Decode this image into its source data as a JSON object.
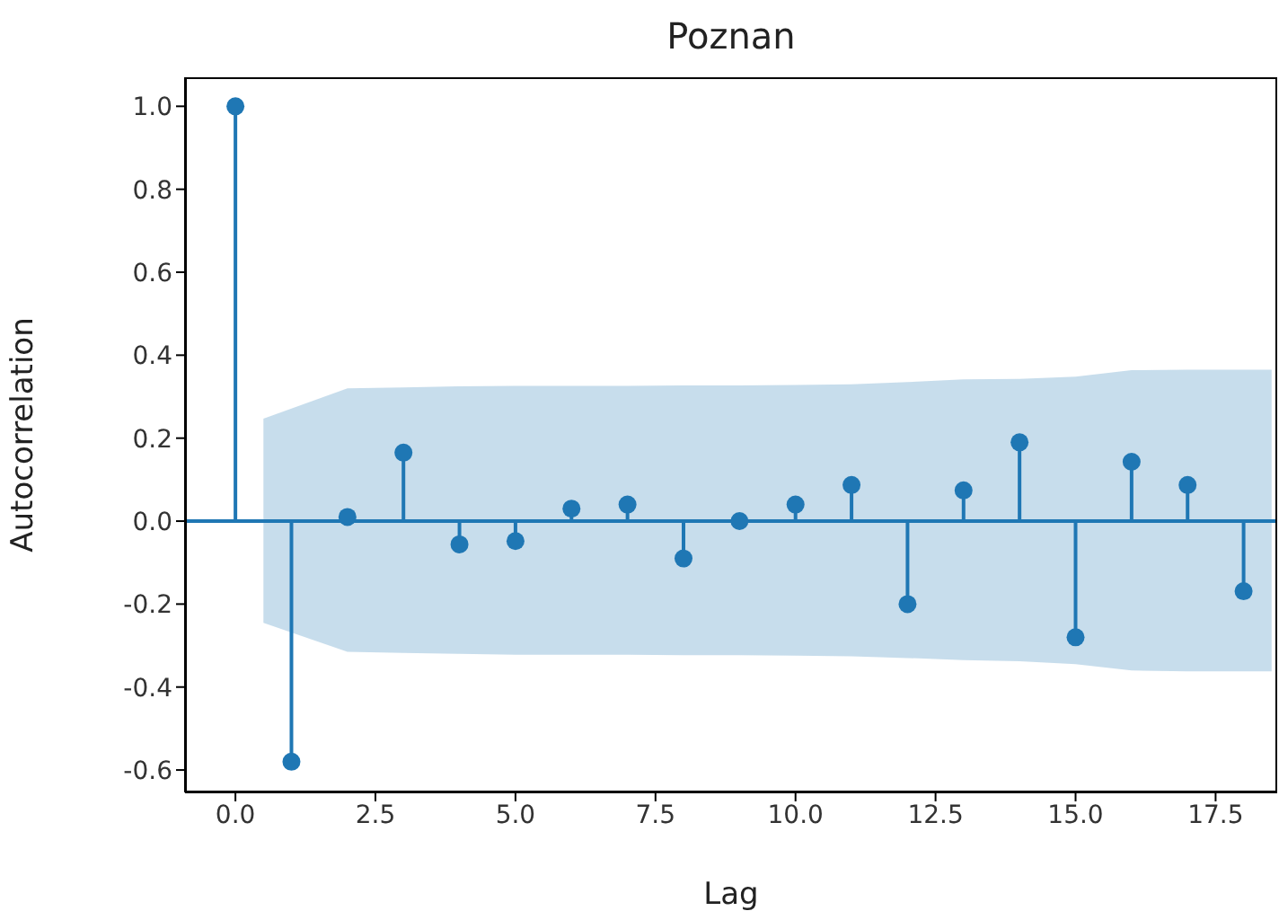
{
  "chart_data": {
    "type": "lollipop",
    "title": "Poznan",
    "xlabel": "Lag",
    "ylabel": "Autocorrelation",
    "xlim": [
      -0.9,
      18.6
    ],
    "ylim": [
      -0.654,
      1.07
    ],
    "xticks": [
      {
        "value": 0,
        "label": "0.0"
      },
      {
        "value": 2.5,
        "label": "2.5"
      },
      {
        "value": 5,
        "label": "5.0"
      },
      {
        "value": 7.5,
        "label": "7.5"
      },
      {
        "value": 10,
        "label": "10.0"
      },
      {
        "value": 12.5,
        "label": "12.5"
      },
      {
        "value": 15,
        "label": "15.0"
      },
      {
        "value": 17.5,
        "label": "17.5"
      }
    ],
    "yticks": [
      -0.6,
      -0.4,
      -0.2,
      {
        "value": 0,
        "label": "0.0"
      },
      0.2,
      0.4,
      0.6,
      0.8,
      {
        "value": 1,
        "label": "1.0"
      }
    ],
    "marker": "circle",
    "grid": false,
    "legend": false,
    "series": [
      {
        "type": "line",
        "marker": "none",
        "color": "#1f77b4",
        "x": [
          -0.9,
          0.5,
          2,
          3,
          4,
          5,
          6,
          7,
          8,
          9,
          10,
          11,
          12,
          13,
          14,
          15,
          16,
          17,
          18.5,
          18.6
        ],
        "values": [
          0,
          0,
          0,
          0,
          0,
          0,
          0,
          0,
          0,
          0,
          0,
          0,
          0,
          0,
          0,
          0,
          0,
          0,
          0,
          0
        ],
        "lower": [
          null,
          -0.245,
          -0.315,
          -0.318,
          -0.32,
          -0.322,
          -0.322,
          -0.322,
          -0.323,
          -0.323,
          -0.324,
          -0.326,
          -0.33,
          -0.335,
          -0.338,
          -0.345,
          -0.36,
          -0.362,
          -0.362,
          null
        ],
        "upper": [
          null,
          0.247,
          0.32,
          0.322,
          0.325,
          0.326,
          0.326,
          0.326,
          0.327,
          0.327,
          0.328,
          0.33,
          0.335,
          0.342,
          0.343,
          0.348,
          0.364,
          0.365,
          0.365,
          null
        ]
      },
      {
        "color": "#1f77b4",
        "x": [
          0,
          1,
          2,
          3,
          4,
          5,
          6,
          7,
          8,
          9,
          10,
          11,
          12,
          13,
          14,
          15,
          16,
          17,
          18
        ],
        "values": [
          1.0,
          -0.58,
          0.01,
          0.165,
          -0.056,
          -0.048,
          0.03,
          0.04,
          -0.09,
          0.0,
          0.04,
          0.087,
          -0.2,
          0.074,
          0.19,
          -0.28,
          0.143,
          0.087,
          -0.169
        ]
      }
    ]
  }
}
